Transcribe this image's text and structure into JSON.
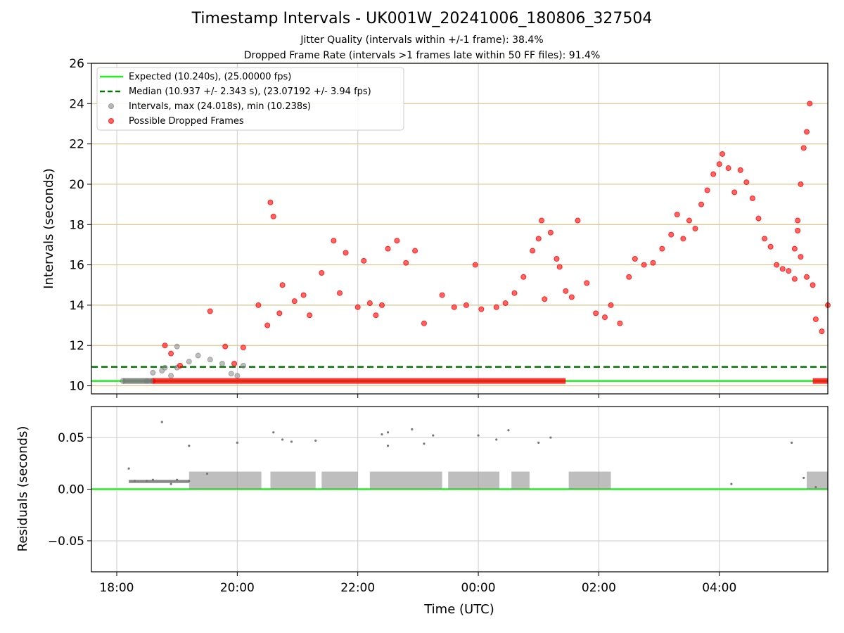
{
  "chart_data": [
    {
      "type": "scatter",
      "title": "Timestamp Intervals - UK001W_20241006_180806_327504",
      "subtitle_lines": [
        "Jitter Quality (intervals within +/-1 frame): 38.4%",
        "Dropped Frame Rate (intervals >1 frames late within 50 FF files): 91.4%"
      ],
      "ylabel": "Intervals (seconds)",
      "x_unit": "hours since 18:00 UTC on 2024-10-06",
      "xlim": [
        -0.42,
        11.8
      ],
      "ylim": [
        9.6,
        26
      ],
      "yticks": [
        10,
        12,
        14,
        16,
        18,
        20,
        22,
        24,
        26
      ],
      "ytick_labels": [
        "10",
        "12",
        "14",
        "16",
        "18",
        "20",
        "22",
        "24",
        "26"
      ],
      "grid": true,
      "legend_position": "top-left",
      "legend": [
        "Expected (10.240s), (25.00000 fps)",
        "Median (10.937 +/- 2.343 s), (23.07192 +/- 3.94 fps)",
        "Intervals, max (24.018s), min (10.238s)",
        "Possible Dropped Frames"
      ],
      "expected_line": 10.24,
      "median_line": 10.937,
      "colors": {
        "expected": "#22ee22",
        "median": "#007700",
        "intervals": "#888888",
        "dropped": "#ff0000",
        "hgrid": "#d8c48c",
        "vgrid": "#cccccc"
      },
      "series": [
        {
          "name": "Intervals, max (24.018s), min (10.238s)",
          "style": "gray-circles",
          "points": [
            [
              0.1,
              10.24
            ],
            [
              0.5,
              10.24
            ],
            [
              0.6,
              10.65
            ],
            [
              0.75,
              10.75
            ],
            [
              0.9,
              10.5
            ],
            [
              1.0,
              10.9
            ],
            [
              1.2,
              11.2
            ],
            [
              1.35,
              11.5
            ],
            [
              1.55,
              11.3
            ],
            [
              1.75,
              11.1
            ],
            [
              1.9,
              10.6
            ],
            [
              1.0,
              11.95
            ],
            [
              0.8,
              10.9
            ],
            [
              2.0,
              10.5
            ],
            [
              2.1,
              11.0
            ]
          ]
        },
        {
          "name": "Possible Dropped Frames",
          "style": "red-circles",
          "points": [
            [
              0.6,
              10.24
            ],
            [
              0.8,
              12.0
            ],
            [
              0.9,
              11.6
            ],
            [
              1.05,
              11.0
            ],
            [
              1.55,
              13.7
            ],
            [
              1.8,
              11.95
            ],
            [
              1.95,
              11.1
            ],
            [
              2.1,
              11.9
            ],
            [
              2.35,
              14.0
            ],
            [
              2.5,
              13.0
            ],
            [
              2.55,
              19.1
            ],
            [
              2.6,
              18.4
            ],
            [
              2.7,
              13.6
            ],
            [
              2.75,
              15.0
            ],
            [
              2.95,
              14.2
            ],
            [
              3.1,
              14.5
            ],
            [
              3.2,
              13.5
            ],
            [
              3.4,
              15.6
            ],
            [
              3.6,
              17.2
            ],
            [
              3.7,
              14.6
            ],
            [
              3.8,
              16.6
            ],
            [
              4.0,
              13.9
            ],
            [
              4.1,
              16.2
            ],
            [
              4.2,
              14.1
            ],
            [
              4.3,
              13.5
            ],
            [
              4.4,
              14.0
            ],
            [
              4.5,
              16.8
            ],
            [
              4.65,
              17.2
            ],
            [
              4.8,
              16.1
            ],
            [
              4.95,
              16.7
            ],
            [
              5.1,
              13.1
            ],
            [
              5.4,
              14.5
            ],
            [
              5.6,
              13.9
            ],
            [
              5.8,
              14.0
            ],
            [
              5.95,
              16.0
            ],
            [
              6.05,
              13.8
            ],
            [
              6.3,
              13.9
            ],
            [
              6.45,
              14.1
            ],
            [
              6.6,
              14.6
            ],
            [
              6.75,
              15.4
            ],
            [
              6.9,
              16.7
            ],
            [
              7.0,
              17.3
            ],
            [
              7.05,
              18.2
            ],
            [
              7.1,
              14.3
            ],
            [
              7.2,
              17.6
            ],
            [
              7.3,
              16.3
            ],
            [
              7.35,
              15.9
            ],
            [
              7.45,
              14.7
            ],
            [
              7.55,
              14.4
            ],
            [
              7.65,
              18.2
            ],
            [
              7.8,
              15.1
            ],
            [
              7.95,
              13.6
            ],
            [
              8.1,
              13.4
            ],
            [
              8.2,
              14.0
            ],
            [
              8.35,
              13.1
            ],
            [
              8.5,
              15.4
            ],
            [
              8.6,
              16.3
            ],
            [
              8.75,
              16.0
            ],
            [
              8.9,
              16.1
            ],
            [
              9.05,
              16.8
            ],
            [
              9.2,
              17.5
            ],
            [
              9.3,
              18.5
            ],
            [
              9.4,
              17.3
            ],
            [
              9.5,
              18.2
            ],
            [
              9.6,
              17.8
            ],
            [
              9.7,
              19.0
            ],
            [
              9.8,
              19.7
            ],
            [
              9.9,
              20.5
            ],
            [
              10.0,
              21.0
            ],
            [
              10.05,
              21.5
            ],
            [
              10.15,
              20.8
            ],
            [
              10.25,
              19.6
            ],
            [
              10.35,
              20.7
            ],
            [
              10.45,
              20.1
            ],
            [
              10.55,
              19.3
            ],
            [
              10.65,
              18.3
            ],
            [
              10.75,
              17.3
            ],
            [
              10.85,
              16.9
            ],
            [
              10.95,
              16.0
            ],
            [
              11.05,
              15.8
            ],
            [
              11.15,
              15.7
            ],
            [
              11.25,
              15.3
            ],
            [
              11.35,
              16.4
            ],
            [
              11.45,
              15.4
            ],
            [
              11.55,
              15.0
            ],
            [
              11.6,
              13.3
            ],
            [
              11.7,
              12.7
            ],
            [
              11.8,
              14.0
            ],
            [
              11.5,
              24.0
            ],
            [
              11.45,
              22.6
            ],
            [
              11.4,
              21.8
            ],
            [
              11.35,
              20.0
            ],
            [
              11.3,
              18.2
            ],
            [
              11.25,
              16.8
            ],
            [
              11.3,
              17.7
            ]
          ]
        }
      ]
    },
    {
      "type": "scatter",
      "xlabel": "Time (UTC)",
      "ylabel": "Residuals (seconds)",
      "xlim": [
        -0.42,
        11.8
      ],
      "ylim": [
        -0.08,
        0.08
      ],
      "yticks": [
        -0.05,
        0.0,
        0.05
      ],
      "ytick_labels": [
        "−0.05",
        "0.00",
        "0.05"
      ],
      "xticks": [
        0,
        2,
        4,
        6,
        8,
        10
      ],
      "xtick_labels": [
        "18:00",
        "20:00",
        "22:00",
        "00:00",
        "02:00",
        "04:00"
      ],
      "grid": true,
      "zero_line": 0.0,
      "colors": {
        "zero": "#22ee22",
        "points": "#777777",
        "grid": "#cccccc"
      },
      "series": [
        {
          "name": "Residuals",
          "style": "gray-dots",
          "points": [
            [
              0.2,
              0.02
            ],
            [
              0.3,
              0.008
            ],
            [
              0.5,
              0.008
            ],
            [
              0.6,
              0.009
            ],
            [
              0.75,
              0.065
            ],
            [
              0.9,
              0.005
            ],
            [
              1.0,
              0.009
            ],
            [
              1.2,
              0.008
            ],
            [
              1.2,
              0.042
            ],
            [
              1.5,
              0.015
            ],
            [
              2.0,
              0.045
            ],
            [
              2.6,
              0.055
            ],
            [
              2.75,
              0.048
            ],
            [
              2.9,
              0.046
            ],
            [
              3.3,
              0.047
            ],
            [
              4.4,
              0.053
            ],
            [
              4.5,
              0.042
            ],
            [
              4.5,
              0.055
            ],
            [
              4.9,
              0.058
            ],
            [
              5.1,
              0.044
            ],
            [
              5.25,
              0.052
            ],
            [
              6.0,
              0.052
            ],
            [
              6.3,
              0.048
            ],
            [
              6.5,
              0.057
            ],
            [
              7.0,
              0.045
            ],
            [
              7.2,
              0.05
            ],
            [
              10.2,
              0.005
            ],
            [
              11.2,
              0.045
            ],
            [
              11.4,
              0.011
            ],
            [
              11.6,
              0.002
            ]
          ]
        }
      ]
    }
  ]
}
